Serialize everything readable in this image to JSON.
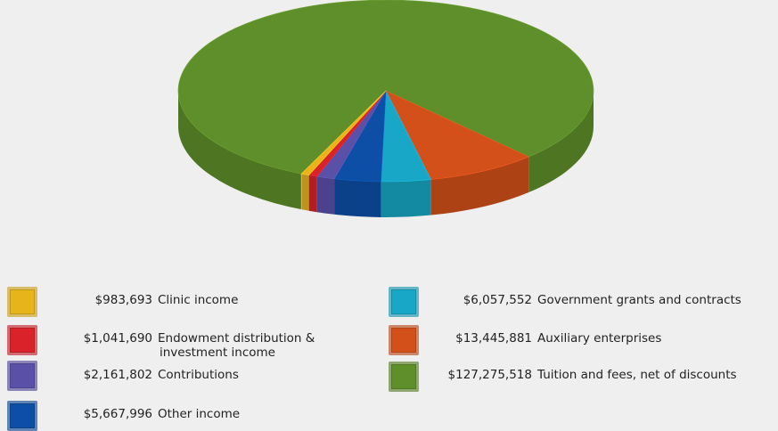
{
  "chart_data": {
    "type": "pie",
    "title": "",
    "slices": [
      {
        "label": "Tuition and fees, net of discounts",
        "amount": "$127,275,518",
        "value": 127275518,
        "color": "#5f8f2a"
      },
      {
        "label": "Auxiliary enterprises",
        "amount": "$13,445,881",
        "value": 13445881,
        "color": "#d3501a"
      },
      {
        "label": "Government grants and contracts",
        "amount": "$6,057,552",
        "value": 6057552,
        "color": "#18a7c6"
      },
      {
        "label": "Other income",
        "amount": "$5,667,996",
        "value": 5667996,
        "color": "#0d4fa6"
      },
      {
        "label": "Contributions",
        "amount": "$2,161,802",
        "value": 2161802,
        "color": "#5a50a8"
      },
      {
        "label": "Endowment distribution & investment income",
        "amount": "$1,041,690",
        "value": 1041690,
        "color": "#d9222a"
      },
      {
        "label": "Clinic income",
        "amount": "$983,693",
        "value": 983693,
        "color": "#e7b41c"
      }
    ]
  },
  "legend": [
    {
      "amount": "$983,693",
      "label": "Clinic income",
      "color": "#e7b41c"
    },
    {
      "amount": "$1,041,690",
      "label": "Endowment distribution &",
      "label2": "investment income",
      "color": "#d9222a"
    },
    {
      "amount": "$2,161,802",
      "label": "Contributions",
      "color": "#5a50a8"
    },
    {
      "amount": "$5,667,996",
      "label": "Other income",
      "color": "#0d4fa6"
    },
    {
      "amount": "$6,057,552",
      "label": "Government grants and contracts",
      "color": "#18a7c6"
    },
    {
      "amount": "$13,445,881",
      "label": "Auxiliary enterprises",
      "color": "#d3501a"
    },
    {
      "amount": "$127,275,518",
      "label": "Tuition and fees, net of discounts",
      "color": "#5f8f2a"
    }
  ]
}
